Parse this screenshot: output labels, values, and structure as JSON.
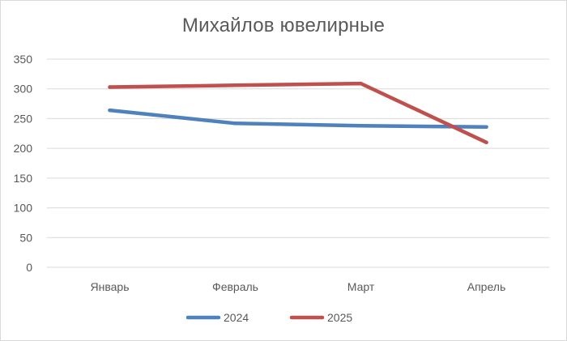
{
  "chart_data": {
    "type": "line",
    "title": "Михайлов ювелирные",
    "categories": [
      "Январь",
      "Февраль",
      "Март",
      "Апрель"
    ],
    "series": [
      {
        "name": "2024",
        "values": [
          264,
          242,
          238,
          236
        ],
        "color": "#4f81bd"
      },
      {
        "name": "2025",
        "values": [
          303,
          306,
          309,
          210
        ],
        "color": "#c0504d"
      }
    ],
    "ylim": [
      0,
      350
    ],
    "yticks": [
      0,
      50,
      100,
      150,
      200,
      250,
      300,
      350
    ],
    "grid": "horizontal",
    "legend": "bottom",
    "xlabel": "",
    "ylabel": ""
  }
}
